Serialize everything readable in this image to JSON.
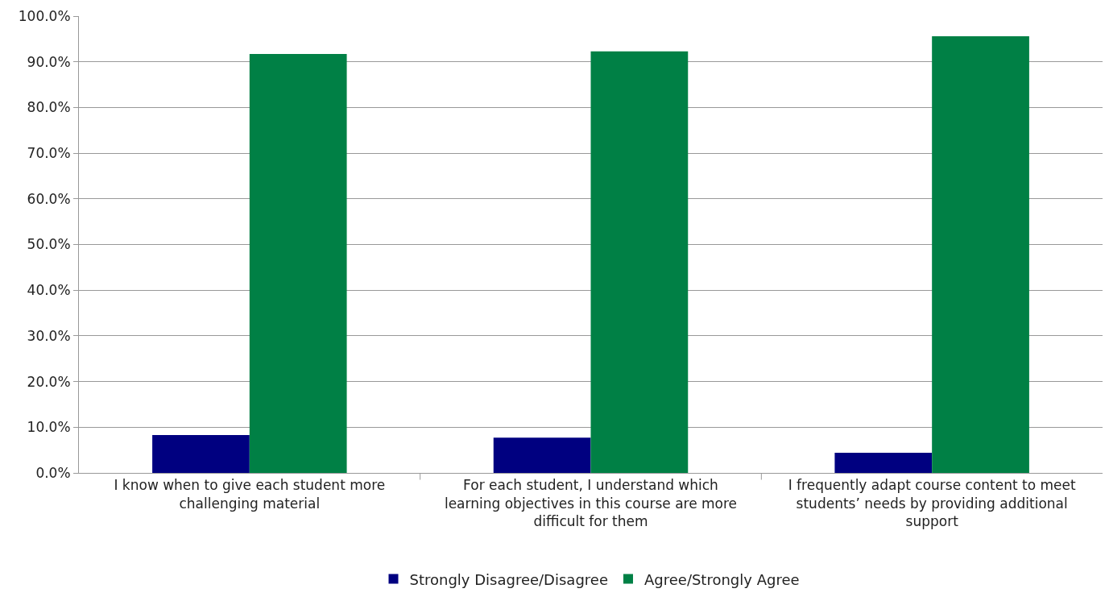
{
  "chart_data": {
    "type": "bar",
    "categories": [
      "I know when to give each student more challenging material",
      "For each student, I understand which learning objectives in this course are more difficult for them",
      "I frequently adapt course content to meet students’ needs by providing additional support"
    ],
    "series": [
      {
        "name": "Strongly Disagree/Disagree",
        "color": "#000080",
        "values": [
          8.3,
          7.7,
          4.4
        ]
      },
      {
        "name": "Agree/Strongly Agree",
        "color": "#008045",
        "values": [
          91.7,
          92.3,
          95.6
        ]
      }
    ],
    "ylim": [
      0,
      100
    ],
    "yticks": [
      {
        "value": 0,
        "label": "0.0%"
      },
      {
        "value": 10,
        "label": "10.0%"
      },
      {
        "value": 20,
        "label": "20.0%"
      },
      {
        "value": 30,
        "label": "30.0%"
      },
      {
        "value": 40,
        "label": "40.0%"
      },
      {
        "value": 50,
        "label": "50.0%"
      },
      {
        "value": 60,
        "label": "60.0%"
      },
      {
        "value": 70,
        "label": "70.0%"
      },
      {
        "value": 80,
        "label": "80.0%"
      },
      {
        "value": 90,
        "label": "90.0%"
      },
      {
        "value": 100,
        "label": "100.0%"
      }
    ],
    "grid": "y",
    "legend": "bottom"
  }
}
